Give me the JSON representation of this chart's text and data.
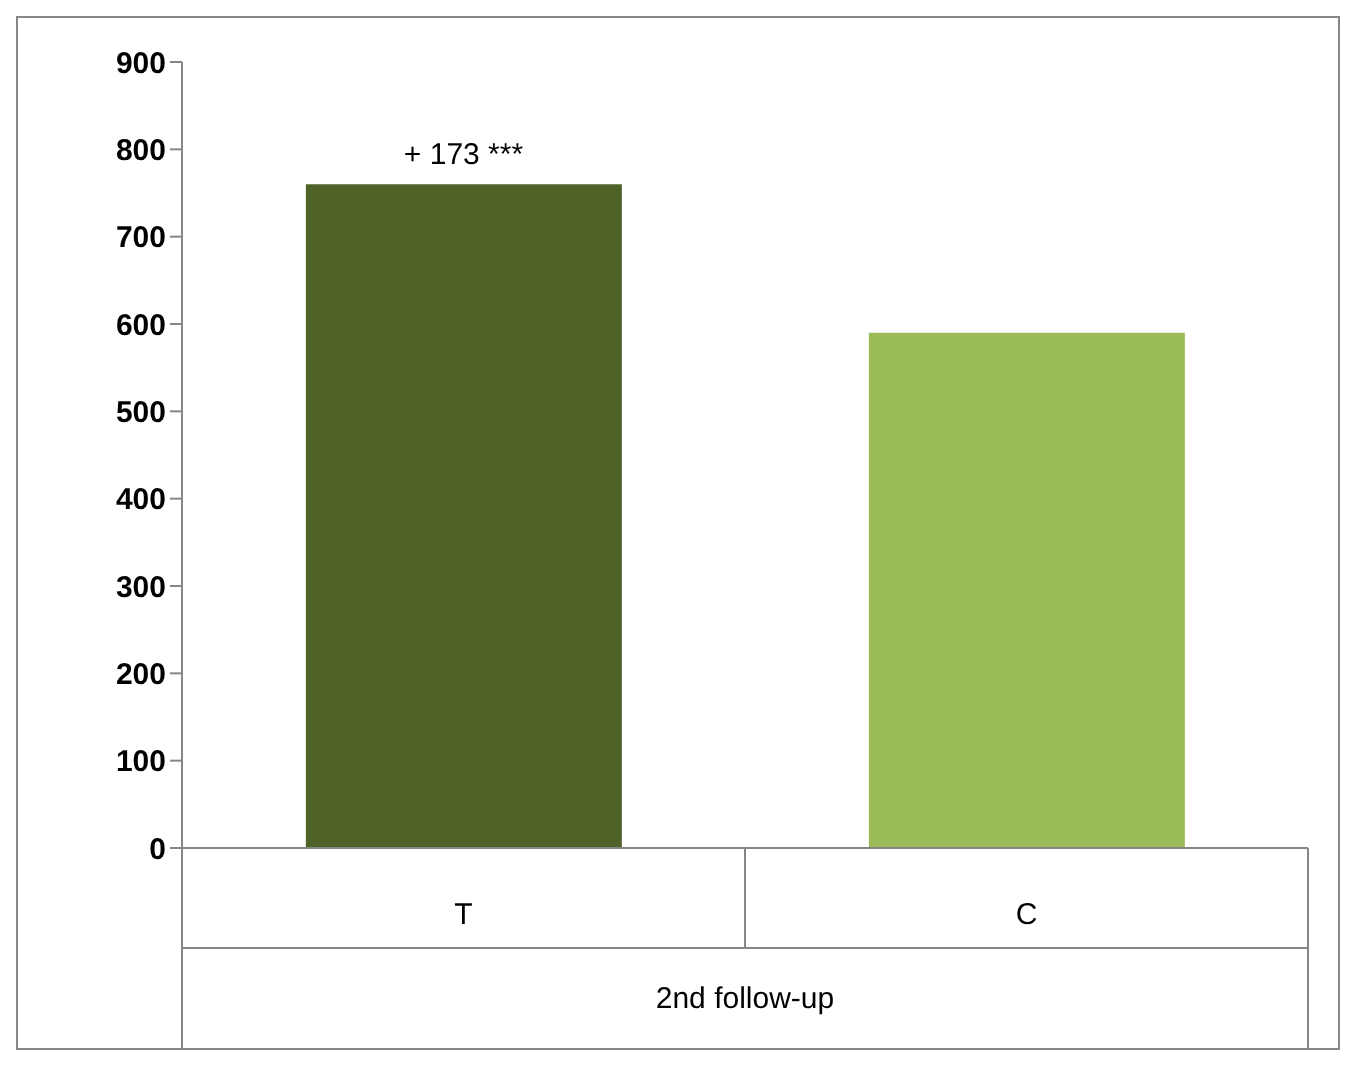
{
  "chart_data": {
    "type": "bar",
    "categories": [
      "T",
      "C"
    ],
    "values": [
      760,
      590
    ],
    "colors": [
      "#4f6228",
      "#9bbb59"
    ],
    "xlabel": "2nd follow-up",
    "ylim": [
      0,
      900
    ],
    "yticks": [
      0,
      100,
      200,
      300,
      400,
      500,
      600,
      700,
      800,
      900
    ],
    "annotations": [
      {
        "text": "+ 173 ***",
        "x": "T",
        "y": 760
      }
    ]
  }
}
